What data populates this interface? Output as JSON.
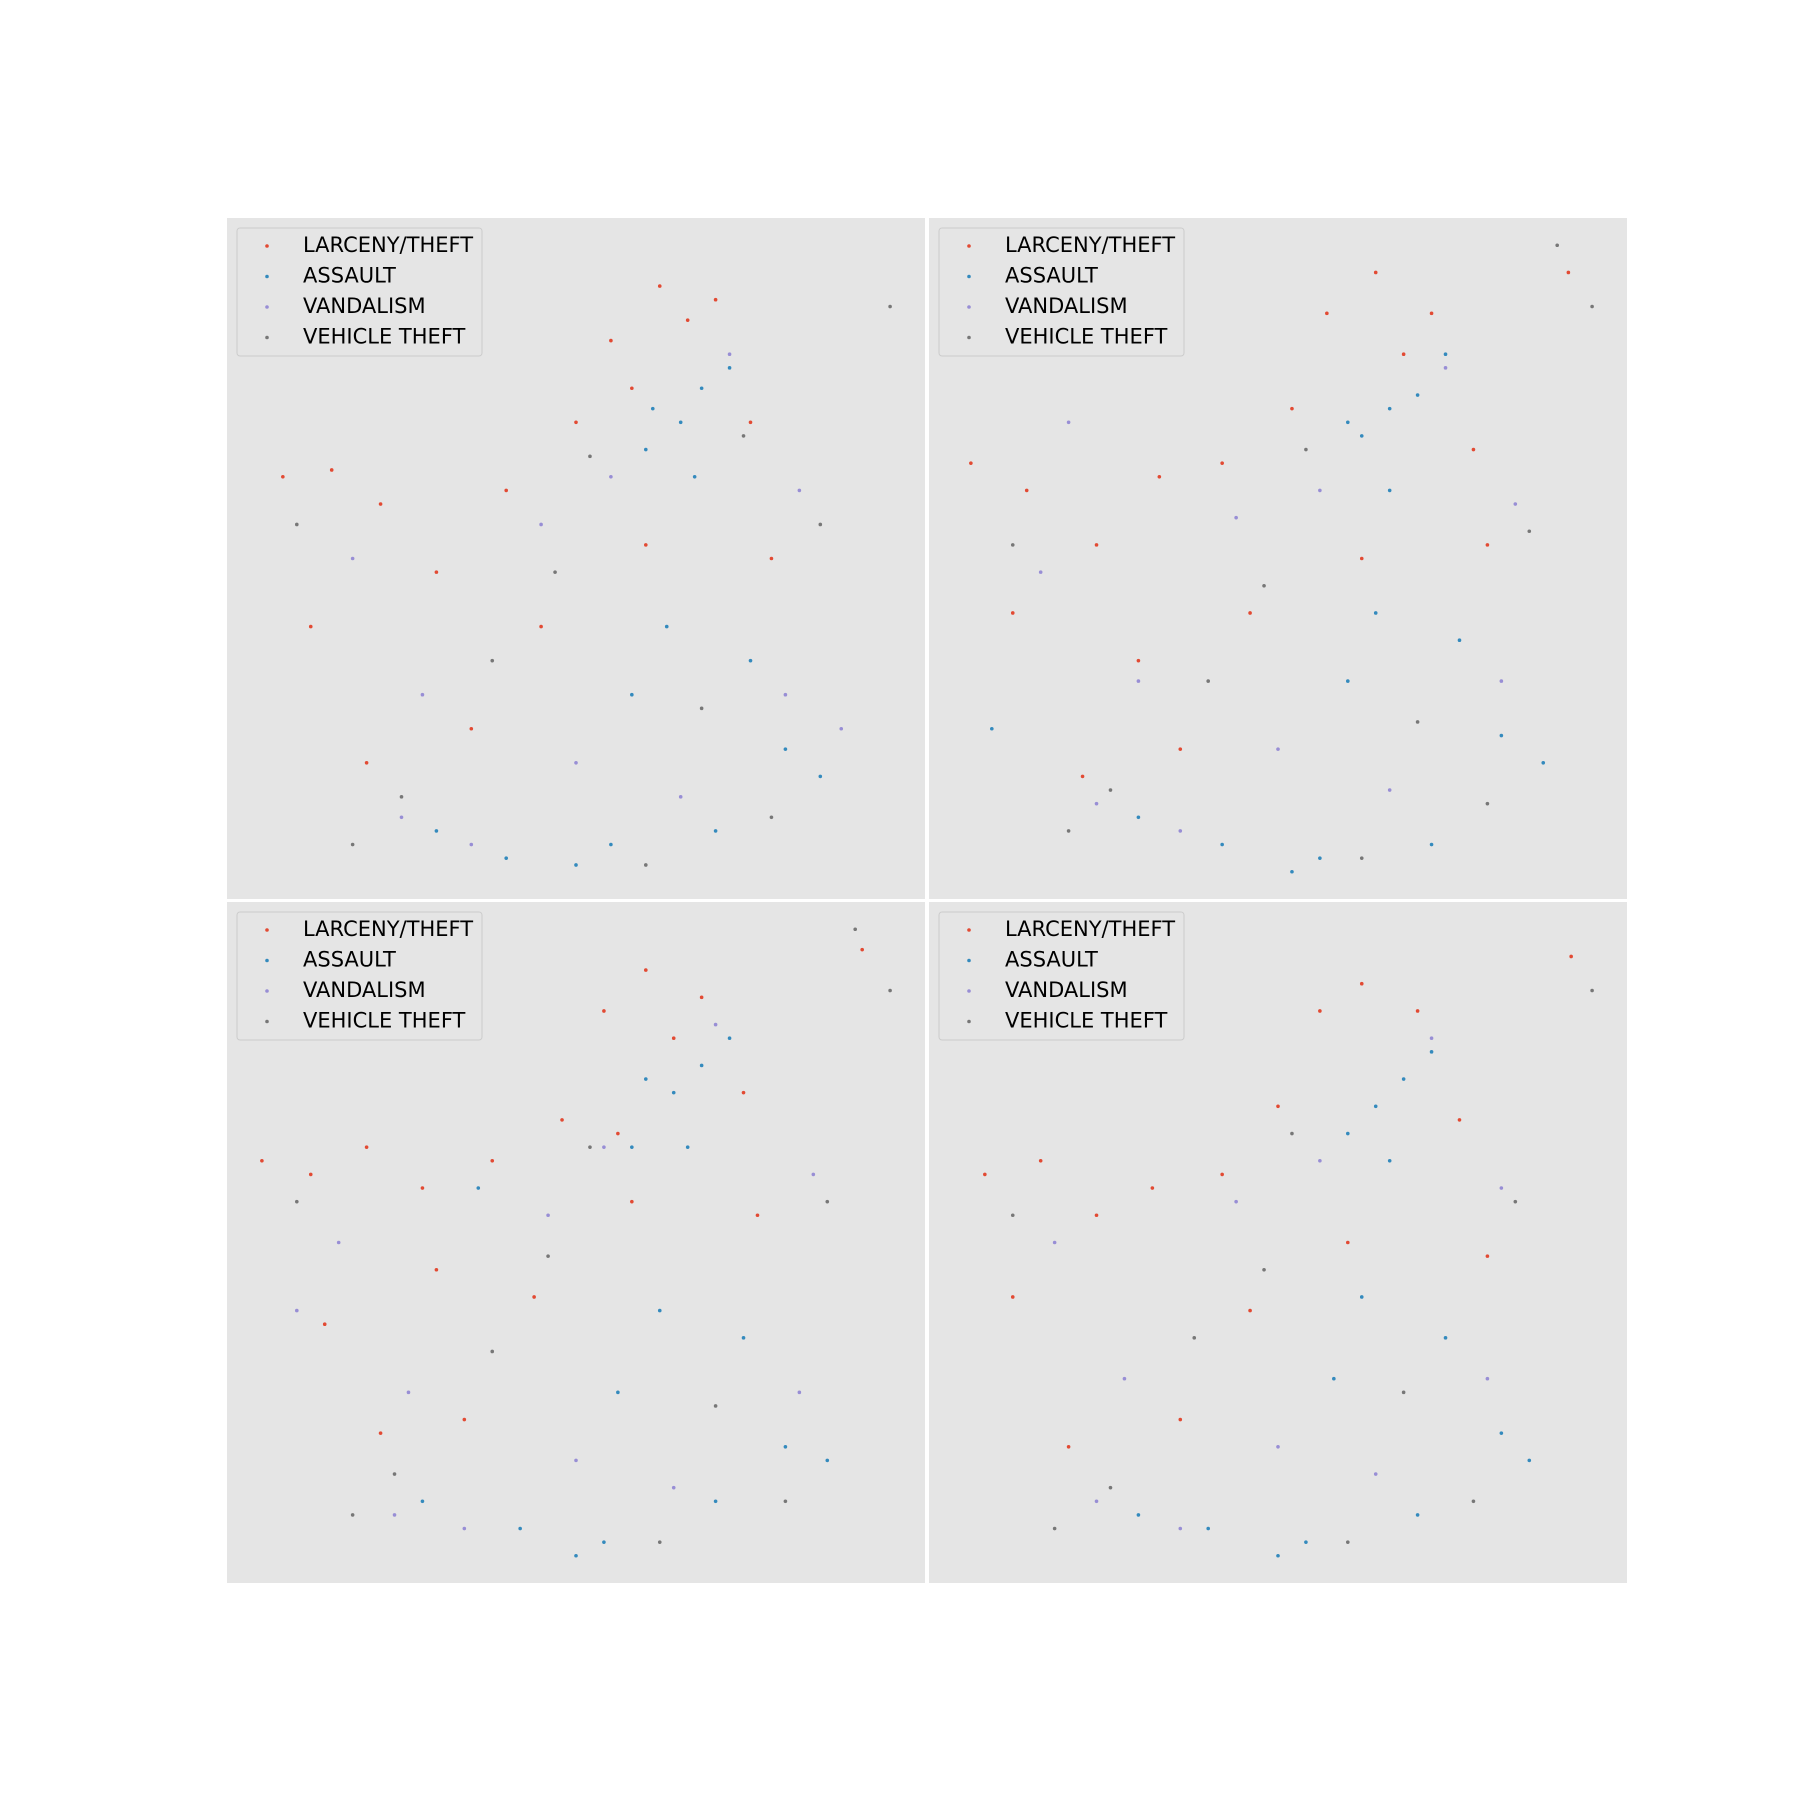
{
  "chart_data": [
    {
      "type": "scatter",
      "xlim": [
        0,
        100
      ],
      "ylim": [
        0,
        100
      ],
      "legend": "upper left",
      "series": [
        {
          "name": "LARCENY/THEFT",
          "color": "#E24A33",
          "x": [
            8,
            15,
            22,
            30,
            40,
            50,
            55,
            62,
            70,
            75,
            60,
            45,
            35,
            20,
            12,
            78,
            66,
            58
          ],
          "values": [
            62,
            63,
            58,
            48,
            60,
            70,
            82,
            90,
            88,
            70,
            52,
            40,
            25,
            20,
            40,
            50,
            85,
            75
          ]
        },
        {
          "name": "ASSAULT",
          "color": "#348ABD",
          "x": [
            60,
            65,
            68,
            72,
            63,
            58,
            80,
            85,
            70,
            55,
            40,
            30,
            50,
            75,
            67,
            61
          ],
          "values": [
            66,
            70,
            75,
            78,
            40,
            30,
            22,
            18,
            10,
            8,
            6,
            10,
            5,
            35,
            62,
            72
          ]
        },
        {
          "name": "VANDALISM",
          "color": "#988ED5",
          "x": [
            18,
            28,
            45,
            55,
            72,
            80,
            65,
            35,
            50,
            82,
            25,
            88
          ],
          "values": [
            50,
            30,
            55,
            62,
            80,
            30,
            15,
            8,
            20,
            60,
            12,
            25
          ]
        },
        {
          "name": "VEHICLE THEFT",
          "color": "#777777",
          "x": [
            95,
            10,
            25,
            47,
            60,
            68,
            78,
            85,
            38,
            52,
            18,
            74
          ],
          "values": [
            87,
            55,
            15,
            48,
            5,
            28,
            12,
            55,
            35,
            65,
            8,
            68
          ]
        }
      ]
    },
    {
      "type": "scatter",
      "xlim": [
        0,
        100
      ],
      "ylim": [
        0,
        100
      ],
      "legend": "upper left",
      "series": [
        {
          "name": "LARCENY/THEFT",
          "color": "#E24A33",
          "x": [
            6,
            14,
            24,
            33,
            42,
            52,
            57,
            64,
            72,
            78,
            62,
            46,
            36,
            22,
            12,
            80,
            91.6,
            68,
            30
          ],
          "values": [
            64,
            60,
            52,
            62,
            64,
            72,
            86,
            92,
            86,
            66,
            50,
            42,
            22,
            18,
            42,
            52,
            92,
            80,
            35
          ]
        },
        {
          "name": "ASSAULT",
          "color": "#348ABD",
          "x": [
            62,
            66,
            70,
            74,
            64,
            60,
            82,
            88,
            72,
            56,
            42,
            30,
            52,
            76,
            66,
            60,
            9
          ],
          "values": [
            68,
            72,
            74,
            80,
            42,
            32,
            24,
            20,
            8,
            6,
            8,
            12,
            4,
            38,
            60,
            70,
            25
          ]
        },
        {
          "name": "VANDALISM",
          "color": "#988ED5",
          "x": [
            16,
            30,
            44,
            56,
            74,
            82,
            66,
            36,
            50,
            84,
            24,
            20
          ],
          "values": [
            48,
            32,
            56,
            60,
            78,
            32,
            16,
            10,
            22,
            58,
            14,
            70
          ]
        },
        {
          "name": "VEHICLE THEFT",
          "color": "#777777",
          "x": [
            90,
            95,
            12,
            26,
            48,
            62,
            70,
            80,
            86,
            40,
            54,
            20
          ],
          "values": [
            96,
            87,
            52,
            16,
            46,
            6,
            26,
            14,
            54,
            32,
            66,
            10
          ]
        }
      ]
    },
    {
      "type": "scatter",
      "xlim": [
        0,
        100
      ],
      "ylim": [
        0,
        100
      ],
      "legend": "upper left",
      "series": [
        {
          "name": "LARCENY/THEFT",
          "color": "#E24A33",
          "x": [
            5,
            12,
            20,
            28,
            38,
            48,
            54,
            60,
            68,
            74,
            58,
            44,
            34,
            22,
            14,
            76,
            91,
            64,
            56,
            30
          ],
          "values": [
            62,
            60,
            64,
            58,
            62,
            68,
            84,
            90,
            86,
            72,
            56,
            42,
            24,
            22,
            38,
            54,
            93,
            80,
            66,
            46
          ]
        },
        {
          "name": "ASSAULT",
          "color": "#348ABD",
          "x": [
            58,
            64,
            68,
            72,
            62,
            56,
            80,
            86,
            70,
            54,
            42,
            28,
            50,
            74,
            66,
            60,
            36
          ],
          "values": [
            64,
            72,
            76,
            80,
            40,
            28,
            20,
            18,
            12,
            6,
            8,
            12,
            4,
            36,
            64,
            74,
            58
          ]
        },
        {
          "name": "VANDALISM",
          "color": "#988ED5",
          "x": [
            16,
            26,
            46,
            54,
            70,
            82,
            64,
            34,
            50,
            84,
            24,
            10
          ],
          "values": [
            50,
            28,
            54,
            64,
            82,
            28,
            14,
            8,
            18,
            60,
            10,
            40
          ]
        },
        {
          "name": "VEHICLE THEFT",
          "color": "#777777",
          "x": [
            90,
            95,
            10,
            24,
            46,
            62,
            70,
            80,
            86,
            38,
            52,
            18
          ],
          "values": [
            96,
            87,
            56,
            16,
            48,
            6,
            26,
            12,
            56,
            34,
            64,
            10
          ]
        }
      ]
    },
    {
      "type": "scatter",
      "xlim": [
        0,
        100
      ],
      "ylim": [
        0,
        100
      ],
      "legend": "upper left",
      "series": [
        {
          "name": "LARCENY/THEFT",
          "color": "#E24A33",
          "x": [
            8,
            16,
            24,
            32,
            42,
            50,
            56,
            62,
            70,
            76,
            60,
            46,
            36,
            20,
            12,
            80,
            92
          ],
          "values": [
            60,
            62,
            54,
            58,
            60,
            70,
            84,
            88,
            84,
            68,
            50,
            40,
            24,
            20,
            42,
            48,
            92
          ]
        },
        {
          "name": "ASSAULT",
          "color": "#348ABD",
          "x": [
            60,
            64,
            68,
            72,
            62,
            58,
            82,
            86,
            70,
            54,
            40,
            30,
            50,
            74,
            66
          ],
          "values": [
            66,
            70,
            74,
            78,
            42,
            30,
            22,
            18,
            10,
            6,
            8,
            10,
            4,
            36,
            62
          ]
        },
        {
          "name": "VANDALISM",
          "color": "#988ED5",
          "x": [
            18,
            28,
            44,
            56,
            72,
            80,
            64,
            36,
            50,
            82,
            24
          ],
          "values": [
            50,
            30,
            56,
            62,
            80,
            30,
            16,
            8,
            20,
            58,
            12
          ]
        },
        {
          "name": "VEHICLE THEFT",
          "color": "#777777",
          "x": [
            95,
            12,
            26,
            48,
            60,
            68,
            78,
            84,
            38,
            52,
            18
          ],
          "values": [
            87,
            54,
            14,
            46,
            6,
            28,
            12,
            56,
            36,
            66,
            8
          ]
        }
      ]
    }
  ]
}
